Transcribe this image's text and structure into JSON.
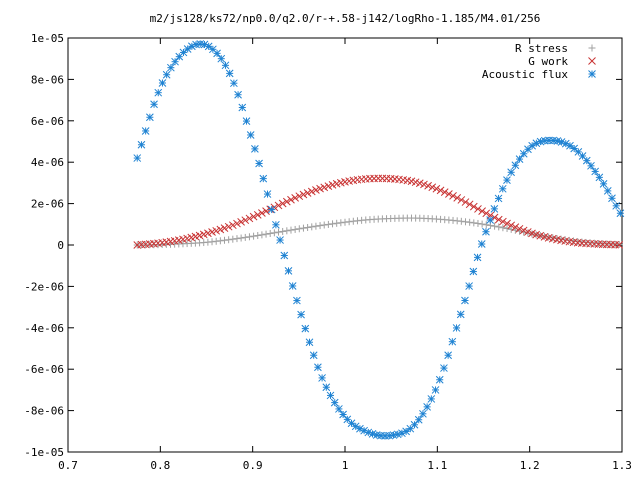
{
  "chart_data": {
    "type": "scatter",
    "title": "m2/js128/ks72/np0.0/q2.0/r-+.58-j142/logRho-1.185/M4.01/256",
    "xlim": [
      0.7,
      1.3
    ],
    "ylim": [
      -1e-05,
      1e-05
    ],
    "x_ticks": [
      "0.7",
      "0.8",
      "0.9",
      "1",
      "1.1",
      "1.2",
      "1.3"
    ],
    "y_ticks": [
      "-1e-05",
      "-8e-06",
      "-6e-06",
      "-4e-06",
      "-2e-06",
      "0",
      "2e-06",
      "4e-06",
      "6e-06",
      "8e-06",
      "1e-05"
    ],
    "legend_position": "top-right",
    "grid": false,
    "series": [
      {
        "name": "R stress",
        "marker": "plus",
        "color": "#a0a0a0",
        "x": [
          0.775,
          0.8,
          0.825,
          0.85,
          0.875,
          0.9,
          0.925,
          0.95,
          0.975,
          1.0,
          1.025,
          1.05,
          1.075,
          1.1,
          1.125,
          1.15,
          1.175,
          1.2,
          1.225,
          1.25,
          1.275,
          1.3
        ],
        "y": [
          0.0,
          2e-08,
          6e-08,
          1.3e-07,
          2.6e-07,
          4.2e-07,
          6e-07,
          7.8e-07,
          9.5e-07,
          1.1e-06,
          1.22e-06,
          1.28e-06,
          1.3e-06,
          1.25e-06,
          1.15e-06,
          1e-06,
          8e-07,
          5.6e-07,
          3.5e-07,
          1.8e-07,
          7e-08,
          2e-08
        ]
      },
      {
        "name": "G work",
        "marker": "cross",
        "color": "#c83232",
        "x": [
          0.775,
          0.8,
          0.825,
          0.85,
          0.875,
          0.9,
          0.925,
          0.95,
          0.975,
          1.0,
          1.025,
          1.05,
          1.075,
          1.1,
          1.125,
          1.15,
          1.175,
          1.2,
          1.225,
          1.25,
          1.275,
          1.3
        ],
        "y": [
          0.0,
          1e-07,
          2.8e-07,
          5.5e-07,
          9e-07,
          1.35e-06,
          1.85e-06,
          2.35e-06,
          2.75e-06,
          3.05e-06,
          3.2e-06,
          3.2e-06,
          3.05e-06,
          2.7e-06,
          2.2e-06,
          1.6e-06,
          1.05e-06,
          6e-07,
          3e-07,
          1.2e-07,
          4e-08,
          0.0
        ]
      },
      {
        "name": "Acoustic flux",
        "marker": "star",
        "color": "#1e82d2",
        "x": [
          0.775,
          0.8,
          0.825,
          0.85,
          0.875,
          0.9,
          0.925,
          0.95,
          0.975,
          1.0,
          1.025,
          1.05,
          1.075,
          1.1,
          1.125,
          1.15,
          1.175,
          1.2,
          1.225,
          1.25,
          1.275,
          1.3
        ],
        "y": [
          4.2e-06,
          7.6e-06,
          9.3e-06,
          9.65e-06,
          8.3e-06,
          5e-06,
          1e-06,
          -3e-06,
          -6.4e-06,
          -8.3e-06,
          -9.05e-06,
          -9.2e-06,
          -8.7e-06,
          -6.8e-06,
          -3.4e-06,
          3e-07,
          3.1e-06,
          4.7e-06,
          5.05e-06,
          4.6e-06,
          3.3e-06,
          1.4e-06
        ]
      }
    ]
  }
}
